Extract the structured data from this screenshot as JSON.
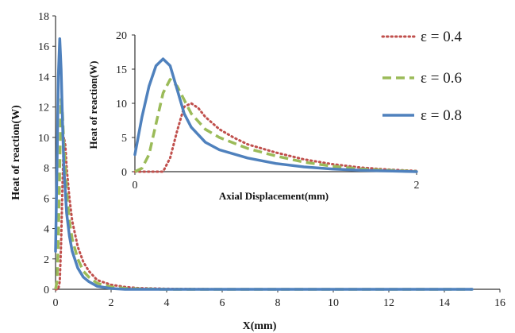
{
  "chart_data": [
    {
      "type": "line",
      "xlabel": "X(mm)",
      "ylabel": "Heat of reaction(W)",
      "xlim": [
        0,
        16
      ],
      "ylim": [
        0,
        18
      ],
      "x_ticks": [
        "0",
        "2",
        "4",
        "6",
        "8",
        "10",
        "12",
        "14",
        "16"
      ],
      "y_ticks": [
        "0",
        "2",
        "4",
        "6",
        "8",
        "10",
        "12",
        "14",
        "16",
        "18"
      ],
      "series": [
        {
          "name": "ε = 0.4",
          "color": "#c0504d",
          "style": "dotted",
          "x": [
            0,
            0.1,
            0.15,
            0.2,
            0.25,
            0.3,
            0.35,
            0.4,
            0.5,
            0.6,
            0.8,
            1.0,
            1.2,
            1.5,
            2.0,
            2.5,
            3.0,
            4.0,
            6.0,
            10.0,
            15.0
          ],
          "y": [
            0,
            0,
            0.5,
            3.0,
            7.0,
            10.0,
            9.5,
            8.0,
            6.0,
            4.5,
            2.8,
            1.8,
            1.2,
            0.6,
            0.3,
            0.15,
            0.08,
            0.03,
            0,
            0,
            0
          ]
        },
        {
          "name": "ε = 0.6",
          "color": "#9bbb59",
          "style": "dashed",
          "x": [
            0,
            0.05,
            0.1,
            0.15,
            0.2,
            0.25,
            0.3,
            0.4,
            0.5,
            0.6,
            0.8,
            1.0,
            1.2,
            1.5,
            2.0,
            2.5,
            3.0,
            4.0,
            6.0,
            10.0,
            15.0
          ],
          "y": [
            0,
            0.5,
            3.0,
            8.0,
            12.5,
            11.5,
            9.5,
            6.5,
            4.5,
            3.3,
            2.0,
            1.2,
            0.8,
            0.4,
            0.15,
            0.07,
            0.03,
            0,
            0,
            0,
            0
          ]
        },
        {
          "name": "ε = 0.8",
          "color": "#4f81bd",
          "style": "solid",
          "x": [
            0,
            0.05,
            0.1,
            0.15,
            0.2,
            0.25,
            0.3,
            0.4,
            0.5,
            0.6,
            0.8,
            1.0,
            1.2,
            1.5,
            2.0,
            2.5,
            3.0,
            4.0,
            6.0,
            10.0,
            15.0
          ],
          "y": [
            2.5,
            8.0,
            14.0,
            16.5,
            14.5,
            11.0,
            8.0,
            5.0,
            3.5,
            2.5,
            1.4,
            0.8,
            0.5,
            0.2,
            0.05,
            0,
            0,
            0,
            0,
            0,
            0
          ]
        }
      ],
      "legend_position": "top-right"
    },
    {
      "type": "line",
      "xlabel": "Axial Displacement(mm)",
      "ylabel": "Heat of reaction(W)",
      "xlim": [
        0,
        2
      ],
      "ylim": [
        0,
        20
      ],
      "x_ticks": [
        "0",
        "2"
      ],
      "y_ticks": [
        "0",
        "5",
        "10",
        "15",
        "20"
      ],
      "series": [
        {
          "name": "ε = 0.4",
          "color": "#c0504d",
          "style": "dotted",
          "x": [
            0,
            0.2,
            0.25,
            0.3,
            0.35,
            0.4,
            0.45,
            0.5,
            0.6,
            0.7,
            0.8,
            1.0,
            1.2,
            1.4,
            1.6,
            1.8,
            2.0
          ],
          "y": [
            0,
            0,
            2.0,
            6.0,
            9.5,
            10.0,
            9.3,
            8.0,
            6.2,
            5.0,
            4.0,
            2.8,
            1.8,
            1.1,
            0.6,
            0.3,
            0.1
          ]
        },
        {
          "name": "ε = 0.6",
          "color": "#9bbb59",
          "style": "dashed",
          "x": [
            0,
            0.05,
            0.1,
            0.15,
            0.2,
            0.25,
            0.3,
            0.35,
            0.4,
            0.5,
            0.6,
            0.8,
            1.0,
            1.2,
            1.4,
            1.6,
            1.8,
            2.0
          ],
          "y": [
            0,
            0.5,
            2.5,
            7.0,
            11.5,
            13.5,
            12.5,
            10.5,
            8.5,
            6.2,
            5.0,
            3.4,
            2.3,
            1.4,
            0.8,
            0.4,
            0.2,
            0.05
          ]
        },
        {
          "name": "ε = 0.8",
          "color": "#4f81bd",
          "style": "solid",
          "x": [
            0,
            0.05,
            0.1,
            0.15,
            0.2,
            0.25,
            0.3,
            0.35,
            0.4,
            0.5,
            0.6,
            0.8,
            1.0,
            1.2,
            1.4,
            1.6,
            1.8,
            2.0
          ],
          "y": [
            2.5,
            8.0,
            12.5,
            15.5,
            16.5,
            15.5,
            12.0,
            8.5,
            6.5,
            4.3,
            3.2,
            2.0,
            1.2,
            0.7,
            0.4,
            0.2,
            0.1,
            0
          ]
        }
      ]
    }
  ]
}
